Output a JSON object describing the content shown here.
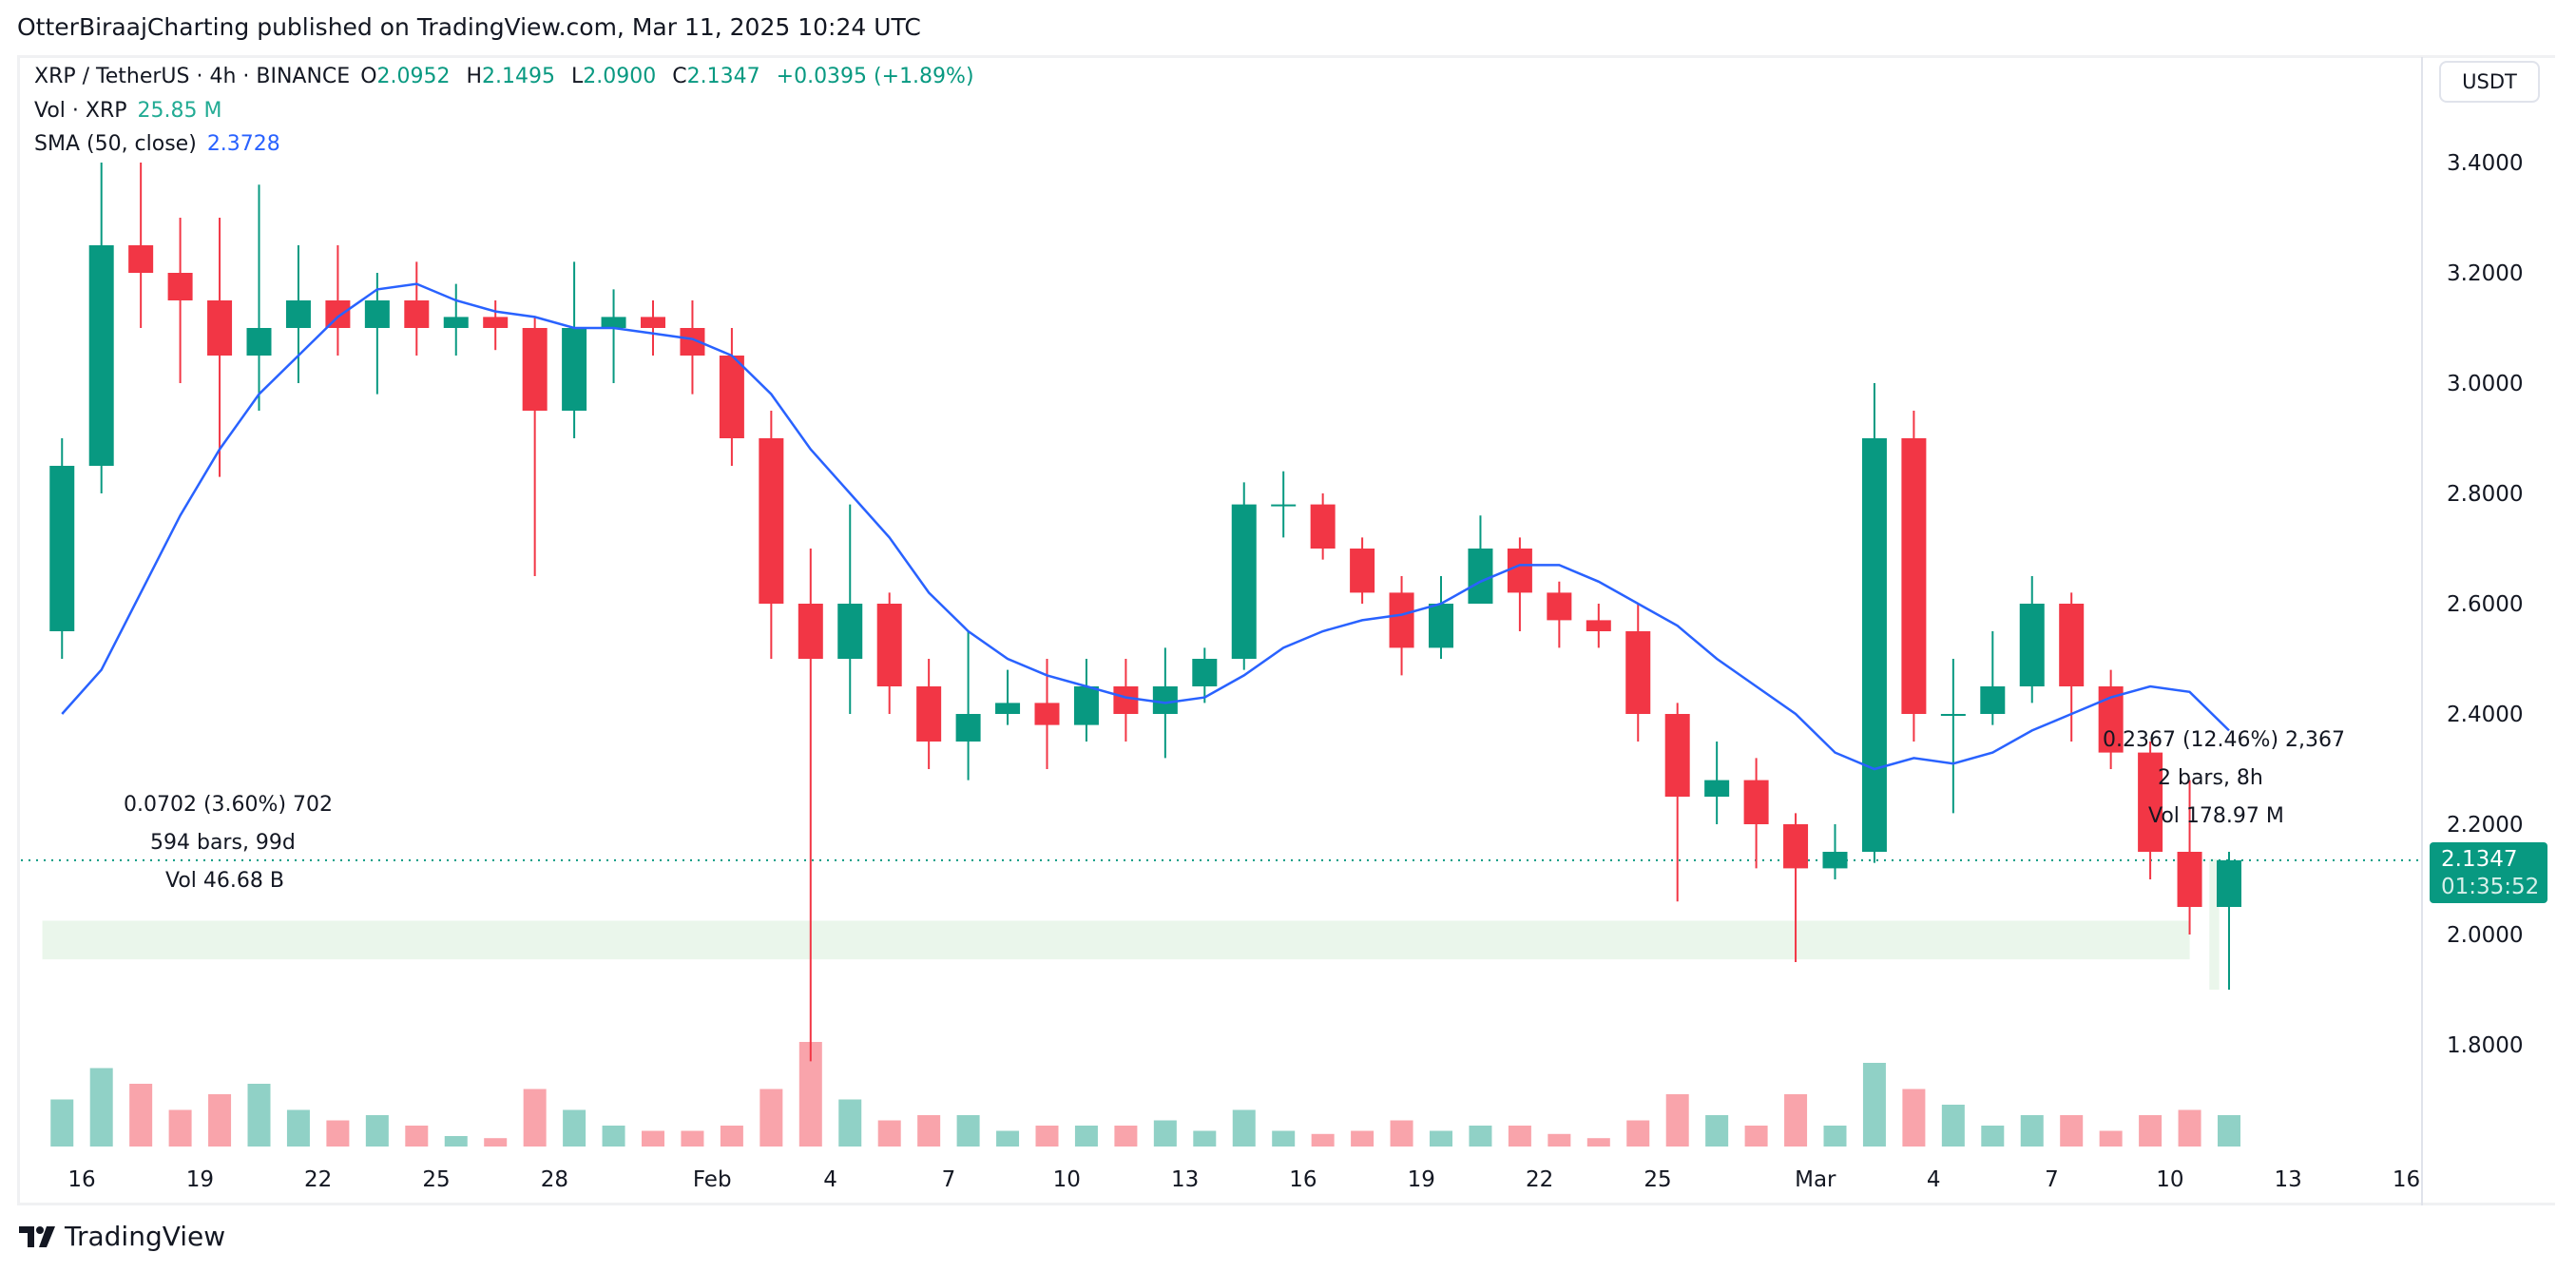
{
  "publisher": "OtterBiraajCharting published on TradingView.com, Mar 11, 2025 10:24 UTC",
  "legend": {
    "symbol": "XRP / TetherUS · 4h · BINANCE",
    "o_label": "O",
    "o": "2.0952",
    "h_label": "H",
    "h": "2.1495",
    "l_label": "L",
    "l": "2.0900",
    "c_label": "C",
    "c": "2.1347",
    "change": "+0.0395 (+1.89%)",
    "vol_label": "Vol · XRP",
    "vol": "25.85 M",
    "sma_label": "SMA (50, close)",
    "sma": "2.3728"
  },
  "currency_button": "USDT",
  "price_tag": {
    "price": "2.1347",
    "countdown": "01:35:52"
  },
  "measure_1": {
    "line1": "0.0702 (3.60%) 702",
    "line2": "594 bars, 99d",
    "line3": "Vol 46.68 B"
  },
  "measure_2": {
    "line1": "0.2367 (12.46%) 2,367",
    "line2": "2 bars, 8h",
    "line3": "Vol 178.97 M"
  },
  "logo": {
    "icon": "tradingview-logo-icon",
    "text": "TradingView"
  },
  "colors": {
    "up": "#089981",
    "down": "#F23645",
    "sma": "#2962FF",
    "range_box": "#e8f5e9"
  },
  "chart_data": {
    "type": "candlestick",
    "note_resolution": "daily approximation of 4h candles",
    "y_ticks": [
      "3.4000",
      "3.2000",
      "3.0000",
      "2.8000",
      "2.6000",
      "2.4000",
      "2.2000",
      "2.0000",
      "1.8000"
    ],
    "ylim": [
      1.66,
      3.56
    ],
    "x_ticks": [
      {
        "label": "16",
        "date": "2025-01-16"
      },
      {
        "label": "19",
        "date": "2025-01-19"
      },
      {
        "label": "22",
        "date": "2025-01-22"
      },
      {
        "label": "25",
        "date": "2025-01-25"
      },
      {
        "label": "28",
        "date": "2025-01-28"
      },
      {
        "label": "Feb",
        "date": "2025-02-01"
      },
      {
        "label": "4",
        "date": "2025-02-04"
      },
      {
        "label": "7",
        "date": "2025-02-07"
      },
      {
        "label": "10",
        "date": "2025-02-10"
      },
      {
        "label": "13",
        "date": "2025-02-13"
      },
      {
        "label": "16",
        "date": "2025-02-16"
      },
      {
        "label": "19",
        "date": "2025-02-19"
      },
      {
        "label": "22",
        "date": "2025-02-22"
      },
      {
        "label": "25",
        "date": "2025-02-25"
      },
      {
        "label": "Mar",
        "date": "2025-03-01"
      },
      {
        "label": "4",
        "date": "2025-03-04"
      },
      {
        "label": "7",
        "date": "2025-03-07"
      },
      {
        "label": "10",
        "date": "2025-03-10"
      },
      {
        "label": "13",
        "date": "2025-03-13"
      },
      {
        "label": "16",
        "date": "2025-03-16"
      }
    ],
    "candles": [
      [
        "2025-01-15",
        2.55,
        2.9,
        2.5,
        2.85,
        0.45
      ],
      [
        "2025-01-16",
        2.85,
        3.4,
        2.8,
        3.25,
        0.75
      ],
      [
        "2025-01-17",
        3.25,
        3.4,
        3.1,
        3.2,
        0.6
      ],
      [
        "2025-01-18",
        3.2,
        3.3,
        3.0,
        3.15,
        0.35
      ],
      [
        "2025-01-19",
        3.15,
        3.3,
        2.83,
        3.05,
        0.5
      ],
      [
        "2025-01-20",
        3.05,
        3.36,
        2.95,
        3.1,
        0.6
      ],
      [
        "2025-01-21",
        3.1,
        3.25,
        3.0,
        3.15,
        0.35
      ],
      [
        "2025-01-22",
        3.15,
        3.25,
        3.05,
        3.1,
        0.25
      ],
      [
        "2025-01-23",
        3.1,
        3.2,
        2.98,
        3.15,
        0.3
      ],
      [
        "2025-01-24",
        3.15,
        3.22,
        3.05,
        3.1,
        0.2
      ],
      [
        "2025-01-25",
        3.1,
        3.18,
        3.05,
        3.12,
        0.1
      ],
      [
        "2025-01-26",
        3.12,
        3.15,
        3.06,
        3.1,
        0.08
      ],
      [
        "2025-01-27",
        3.1,
        3.12,
        2.65,
        2.95,
        0.55
      ],
      [
        "2025-01-28",
        2.95,
        3.22,
        2.9,
        3.1,
        0.35
      ],
      [
        "2025-01-29",
        3.1,
        3.17,
        3.0,
        3.12,
        0.2
      ],
      [
        "2025-01-30",
        3.12,
        3.15,
        3.05,
        3.1,
        0.15
      ],
      [
        "2025-01-31",
        3.1,
        3.15,
        2.98,
        3.05,
        0.15
      ],
      [
        "2025-02-01",
        3.05,
        3.1,
        2.85,
        2.9,
        0.2
      ],
      [
        "2025-02-02",
        2.9,
        2.95,
        2.5,
        2.6,
        0.55
      ],
      [
        "2025-02-03",
        2.6,
        2.7,
        1.77,
        2.5,
        1.0
      ],
      [
        "2025-02-04",
        2.5,
        2.78,
        2.4,
        2.6,
        0.45
      ],
      [
        "2025-02-05",
        2.6,
        2.62,
        2.4,
        2.45,
        0.25
      ],
      [
        "2025-02-06",
        2.45,
        2.5,
        2.3,
        2.35,
        0.3
      ],
      [
        "2025-02-07",
        2.35,
        2.55,
        2.28,
        2.4,
        0.3
      ],
      [
        "2025-02-08",
        2.4,
        2.48,
        2.38,
        2.42,
        0.15
      ],
      [
        "2025-02-09",
        2.42,
        2.5,
        2.3,
        2.38,
        0.2
      ],
      [
        "2025-02-10",
        2.38,
        2.5,
        2.35,
        2.45,
        0.2
      ],
      [
        "2025-02-11",
        2.45,
        2.5,
        2.35,
        2.4,
        0.2
      ],
      [
        "2025-02-12",
        2.4,
        2.52,
        2.32,
        2.45,
        0.25
      ],
      [
        "2025-02-13",
        2.45,
        2.52,
        2.42,
        2.5,
        0.15
      ],
      [
        "2025-02-14",
        2.5,
        2.82,
        2.48,
        2.78,
        0.35
      ],
      [
        "2025-02-15",
        2.78,
        2.84,
        2.72,
        2.78,
        0.15
      ],
      [
        "2025-02-16",
        2.78,
        2.8,
        2.68,
        2.7,
        0.12
      ],
      [
        "2025-02-17",
        2.7,
        2.72,
        2.6,
        2.62,
        0.15
      ],
      [
        "2025-02-18",
        2.62,
        2.65,
        2.47,
        2.52,
        0.25
      ],
      [
        "2025-02-19",
        2.52,
        2.65,
        2.5,
        2.6,
        0.15
      ],
      [
        "2025-02-20",
        2.6,
        2.76,
        2.6,
        2.7,
        0.2
      ],
      [
        "2025-02-21",
        2.7,
        2.72,
        2.55,
        2.62,
        0.2
      ],
      [
        "2025-02-22",
        2.62,
        2.64,
        2.52,
        2.57,
        0.12
      ],
      [
        "2025-02-23",
        2.57,
        2.6,
        2.52,
        2.55,
        0.08
      ],
      [
        "2025-02-24",
        2.55,
        2.6,
        2.35,
        2.4,
        0.25
      ],
      [
        "2025-02-25",
        2.4,
        2.42,
        2.06,
        2.25,
        0.5
      ],
      [
        "2025-02-26",
        2.25,
        2.35,
        2.2,
        2.28,
        0.3
      ],
      [
        "2025-02-27",
        2.28,
        2.32,
        2.12,
        2.2,
        0.2
      ],
      [
        "2025-02-28",
        2.2,
        2.22,
        1.95,
        2.12,
        0.5
      ],
      [
        "2025-03-01",
        2.12,
        2.2,
        2.1,
        2.15,
        0.2
      ],
      [
        "2025-03-02",
        2.15,
        3.0,
        2.13,
        2.9,
        0.8
      ],
      [
        "2025-03-03",
        2.9,
        2.95,
        2.35,
        2.4,
        0.55
      ],
      [
        "2025-03-04",
        2.4,
        2.5,
        2.22,
        2.4,
        0.4
      ],
      [
        "2025-03-05",
        2.4,
        2.55,
        2.38,
        2.45,
        0.2
      ],
      [
        "2025-03-06",
        2.45,
        2.65,
        2.42,
        2.6,
        0.3
      ],
      [
        "2025-03-07",
        2.6,
        2.62,
        2.35,
        2.45,
        0.3
      ],
      [
        "2025-03-08",
        2.45,
        2.48,
        2.3,
        2.33,
        0.15
      ],
      [
        "2025-03-09",
        2.33,
        2.35,
        2.1,
        2.15,
        0.3
      ],
      [
        "2025-03-10",
        2.15,
        2.28,
        2.0,
        2.05,
        0.35
      ],
      [
        "2025-03-11",
        2.05,
        2.15,
        1.9,
        2.1347,
        0.3
      ]
    ],
    "candle_fields": [
      "date",
      "open",
      "high",
      "low",
      "close",
      "relative_volume"
    ],
    "sma_50": [
      2.4,
      2.48,
      2.62,
      2.76,
      2.88,
      2.98,
      3.05,
      3.12,
      3.17,
      3.18,
      3.15,
      3.13,
      3.12,
      3.1,
      3.1,
      3.09,
      3.08,
      3.05,
      2.98,
      2.88,
      2.8,
      2.72,
      2.62,
      2.55,
      2.5,
      2.47,
      2.45,
      2.43,
      2.42,
      2.43,
      2.47,
      2.52,
      2.55,
      2.57,
      2.58,
      2.6,
      2.64,
      2.67,
      2.67,
      2.64,
      2.6,
      2.56,
      2.5,
      2.45,
      2.4,
      2.33,
      2.3,
      2.32,
      2.31,
      2.33,
      2.37,
      2.4,
      2.43,
      2.45,
      2.44,
      2.37
    ],
    "last_price": 2.1347,
    "range_boxes": [
      {
        "from": "2025-01-15",
        "to": "2025-03-10T12:00",
        "low": 1.955,
        "high": 2.025
      },
      {
        "from": "2025-03-11",
        "to": "2025-03-11T06:00",
        "low": 1.9,
        "high": 2.1367
      }
    ]
  }
}
